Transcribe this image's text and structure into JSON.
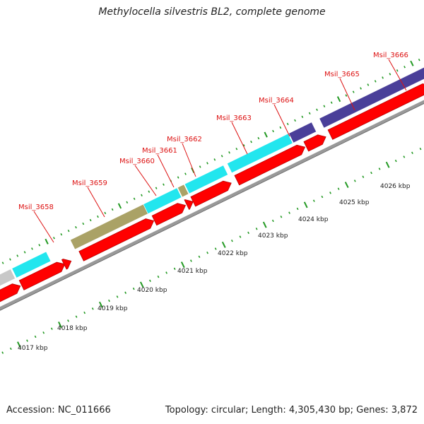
{
  "title": "Methylocella silvestris BL2, complete genome",
  "footer": {
    "accession": "Accession: NC_011666",
    "summary": "Topology: circular; Length: 4,305,430 bp; Genes: 3,872"
  },
  "colors": {
    "cds": "#ff0000",
    "cds_dark": "#b80000",
    "background": "#ffffff",
    "gene_label": "#dd1111",
    "tick": "#229922",
    "backbone": "#999999",
    "cyan": "#22e6ee",
    "olive": "#aaa266",
    "navy": "#4a3f99",
    "grey": "#c8c8c8"
  },
  "genes": [
    {
      "label": "Msil_3658"
    },
    {
      "label": "Msil_3659"
    },
    {
      "label": "Msil_3660"
    },
    {
      "label": "Msil_3661"
    },
    {
      "label": "Msil_3662"
    },
    {
      "label": "Msil_3663"
    },
    {
      "label": "Msil_3664"
    },
    {
      "label": "Msil_3665"
    },
    {
      "label": "Msil_3666"
    }
  ],
  "scale": {
    "labels": [
      "4017 kbp",
      "4018 kbp",
      "4019 kbp",
      "4020 kbp",
      "4021 kbp",
      "4022 kbp",
      "4023 kbp",
      "4024 kbp",
      "4025 kbp",
      "4026 kbp"
    ]
  }
}
